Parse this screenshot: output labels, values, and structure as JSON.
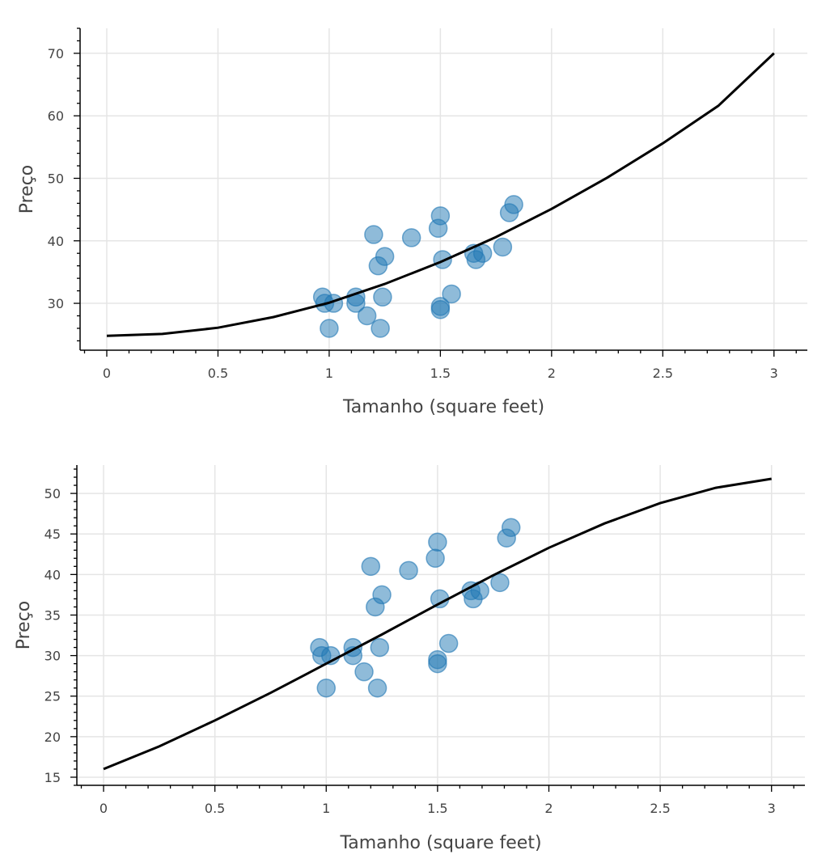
{
  "chart_data": [
    {
      "type": "scatter",
      "xlabel": "Tamanho (square feet)",
      "ylabel": "Preço",
      "xlim": [
        -0.12,
        3.15
      ],
      "ylim": [
        22.5,
        74
      ],
      "xticks": [
        0,
        0.5,
        1,
        1.5,
        2,
        2.5,
        3
      ],
      "xtick_labels": [
        "0",
        "0.5",
        "1",
        "1.5",
        "2",
        "2.5",
        "3"
      ],
      "yticks": [
        30,
        40,
        50,
        60,
        70
      ],
      "ytick_labels": [
        "30",
        "40",
        "50",
        "60",
        "70"
      ],
      "grid": true,
      "point_color": "#1f77b4",
      "line_color": "#000000",
      "points": [
        [
          0.97,
          31
        ],
        [
          0.98,
          30
        ],
        [
          1.0,
          26
        ],
        [
          1.02,
          30
        ],
        [
          1.12,
          31
        ],
        [
          1.12,
          30
        ],
        [
          1.17,
          28
        ],
        [
          1.2,
          41
        ],
        [
          1.22,
          36
        ],
        [
          1.23,
          26
        ],
        [
          1.24,
          31
        ],
        [
          1.25,
          37.5
        ],
        [
          1.37,
          40.5
        ],
        [
          1.49,
          42
        ],
        [
          1.5,
          44
        ],
        [
          1.5,
          29.5
        ],
        [
          1.5,
          29
        ],
        [
          1.51,
          37
        ],
        [
          1.55,
          31.5
        ],
        [
          1.65,
          38
        ],
        [
          1.66,
          37
        ],
        [
          1.69,
          38
        ],
        [
          1.78,
          39
        ],
        [
          1.81,
          44.5
        ],
        [
          1.83,
          45.8
        ]
      ],
      "curve": {
        "x": [
          0,
          0.25,
          0.5,
          0.75,
          1,
          1.25,
          1.5,
          1.75,
          2,
          2.25,
          2.5,
          2.75,
          3
        ],
        "y": [
          24.8,
          25.1,
          26.1,
          27.8,
          30.1,
          33.1,
          36.6,
          40.6,
          45.1,
          50.1,
          55.6,
          61.6,
          70
        ]
      }
    },
    {
      "type": "scatter",
      "xlabel": "Tamanho (square feet)",
      "ylabel": "Preço",
      "xlim": [
        -0.12,
        3.15
      ],
      "ylim": [
        14,
        53.5
      ],
      "xticks": [
        0,
        0.5,
        1,
        1.5,
        2,
        2.5,
        3
      ],
      "xtick_labels": [
        "0",
        "0.5",
        "1",
        "1.5",
        "2",
        "2.5",
        "3"
      ],
      "yticks": [
        15,
        20,
        25,
        30,
        35,
        40,
        45,
        50
      ],
      "ytick_labels": [
        "15",
        "20",
        "25",
        "30",
        "35",
        "40",
        "45",
        "50"
      ],
      "grid": true,
      "point_color": "#1f77b4",
      "line_color": "#000000",
      "points": [
        [
          0.97,
          31
        ],
        [
          0.98,
          30
        ],
        [
          1.0,
          26
        ],
        [
          1.02,
          30
        ],
        [
          1.12,
          31
        ],
        [
          1.12,
          30
        ],
        [
          1.17,
          28
        ],
        [
          1.2,
          41
        ],
        [
          1.22,
          36
        ],
        [
          1.23,
          26
        ],
        [
          1.24,
          31
        ],
        [
          1.25,
          37.5
        ],
        [
          1.37,
          40.5
        ],
        [
          1.49,
          42
        ],
        [
          1.5,
          44
        ],
        [
          1.5,
          29.5
        ],
        [
          1.5,
          29
        ],
        [
          1.51,
          37
        ],
        [
          1.55,
          31.5
        ],
        [
          1.65,
          38
        ],
        [
          1.66,
          37
        ],
        [
          1.69,
          38
        ],
        [
          1.78,
          39
        ],
        [
          1.81,
          44.5
        ],
        [
          1.83,
          45.8
        ]
      ],
      "curve": {
        "x": [
          0,
          0.25,
          0.5,
          0.75,
          1,
          1.25,
          1.5,
          1.75,
          2,
          2.25,
          2.5,
          2.75,
          3
        ],
        "y": [
          16,
          18.8,
          22,
          25.4,
          29,
          32.6,
          36.3,
          39.9,
          43.3,
          46.3,
          48.8,
          50.7,
          51.8
        ]
      }
    }
  ]
}
